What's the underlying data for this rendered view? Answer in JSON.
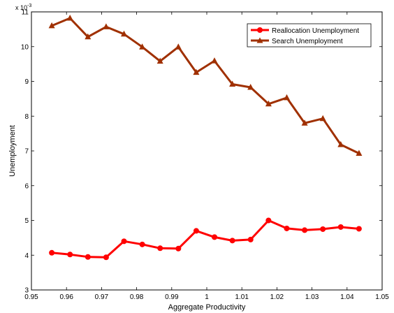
{
  "chart_data": {
    "type": "line",
    "title": "",
    "xlabel": "Aggregate Productivity",
    "ylabel": "Unemployment",
    "y_multiplier_label": "x 10",
    "y_multiplier_exponent": "-3",
    "xlim": [
      0.95,
      1.05
    ],
    "ylim": [
      3,
      11
    ],
    "xticks": [
      0.95,
      0.96,
      0.97,
      0.98,
      0.99,
      1,
      1.01,
      1.02,
      1.03,
      1.04,
      1.05
    ],
    "xtick_labels": [
      "0.95",
      "0.96",
      "0.97",
      "0.98",
      "0.99",
      "1",
      "1.01",
      "1.02",
      "1.03",
      "1.04",
      "1.05"
    ],
    "yticks": [
      3,
      4,
      5,
      6,
      7,
      8,
      9,
      10,
      11
    ],
    "ytick_labels": [
      "3",
      "4",
      "5",
      "6",
      "7",
      "8",
      "9",
      "10",
      "11"
    ],
    "grid": false,
    "legend_position": "top-right",
    "x": [
      0.9558,
      0.961,
      0.9661,
      0.9713,
      0.9764,
      0.9816,
      0.9867,
      0.9919,
      0.997,
      1.0022,
      1.0073,
      1.0125,
      1.0176,
      1.0228,
      1.0279,
      1.0331,
      1.0382,
      1.0434
    ],
    "series": [
      {
        "name": "Reallocation Unemployment",
        "color": "#ff0000",
        "marker": "circle",
        "values": [
          4.07,
          4.02,
          3.95,
          3.94,
          4.4,
          4.31,
          4.2,
          4.19,
          4.7,
          4.52,
          4.42,
          4.45,
          5.0,
          4.77,
          4.72,
          4.75,
          4.81,
          4.76
        ]
      },
      {
        "name": "Search Unemployment",
        "color": "#a03000",
        "marker": "triangle",
        "values": [
          10.6,
          10.82,
          10.28,
          10.57,
          10.36,
          9.99,
          9.58,
          9.99,
          9.26,
          9.59,
          8.92,
          8.83,
          8.35,
          8.53,
          7.8,
          7.93,
          7.18,
          6.93
        ]
      }
    ]
  }
}
